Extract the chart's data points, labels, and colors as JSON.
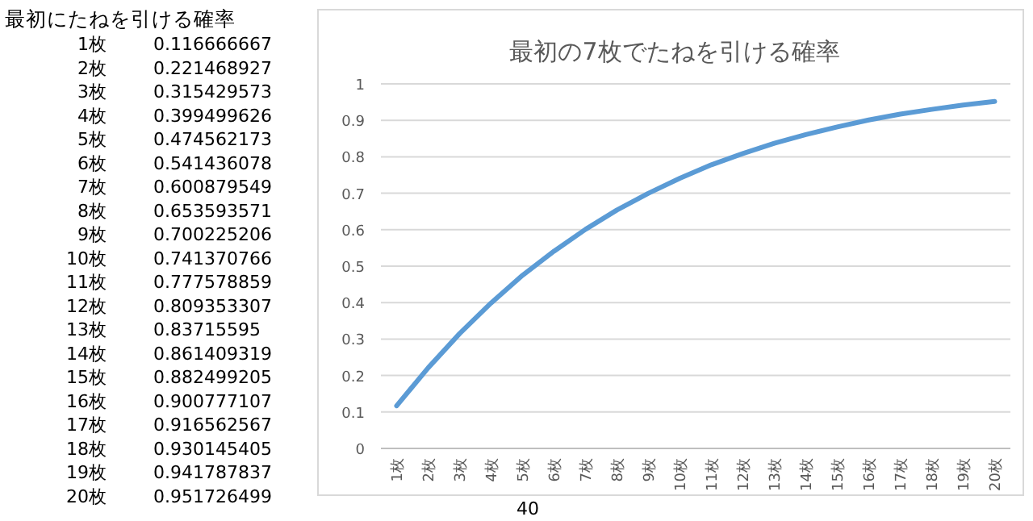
{
  "chart_data": [
    {
      "type": "heatmap",
      "title": "最初にたねを引ける確率",
      "categories": [
        null
      ],
      "y_categories": [
        "1枚",
        "2枚",
        "3枚",
        "4枚",
        "5枚",
        "6枚",
        "7枚",
        "8枚",
        "9枚",
        "10枚",
        "11枚",
        "12枚",
        "13枚",
        "14枚",
        "15枚",
        "16枚",
        "17枚",
        "18枚",
        "19枚",
        "20枚"
      ],
      "cells": [
        [
          0.116666667
        ],
        [
          0.221468927
        ],
        [
          0.315429573
        ],
        [
          0.399499626
        ],
        [
          0.474562173
        ],
        [
          0.541436078
        ],
        [
          0.600879549
        ],
        [
          0.653593571
        ],
        [
          0.700225206
        ],
        [
          0.741370766
        ],
        [
          0.777578859
        ],
        [
          0.809353307
        ],
        [
          0.83715595
        ],
        [
          0.861409319
        ],
        [
          0.882499205
        ],
        [
          0.900777107
        ],
        [
          0.916562567
        ],
        [
          0.930145405
        ],
        [
          0.941787837
        ],
        [
          0.951726499
        ]
      ],
      "cell_labels": [
        [
          "0.116666667"
        ],
        [
          "0.221468927"
        ],
        [
          "0.315429573"
        ],
        [
          "0.399499626"
        ],
        [
          "0.474562173"
        ],
        [
          "0.541436078"
        ],
        [
          "0.600879549"
        ],
        [
          "0.653593571"
        ],
        [
          "0.700225206"
        ],
        [
          "0.741370766"
        ],
        [
          "0.777578859"
        ],
        [
          "0.809353307"
        ],
        [
          "0.83715595"
        ],
        [
          "0.861409319"
        ],
        [
          "0.882499205"
        ],
        [
          "0.900777107"
        ],
        [
          "0.916562567"
        ],
        [
          "0.930145405"
        ],
        [
          "0.941787837"
        ],
        [
          "0.951726499"
        ]
      ],
      "annotations": [
        "40"
      ]
    },
    {
      "type": "line",
      "title": "最初の7枚でたねを引ける確率",
      "categories": [
        "1枚",
        "2枚",
        "3枚",
        "4枚",
        "5枚",
        "6枚",
        "7枚",
        "8枚",
        "9枚",
        "10枚",
        "11枚",
        "12枚",
        "13枚",
        "14枚",
        "15枚",
        "16枚",
        "17枚",
        "18枚",
        "19枚",
        "20枚"
      ],
      "values": [
        0.117,
        0.221,
        0.315,
        0.399,
        0.475,
        0.541,
        0.601,
        0.654,
        0.7,
        0.741,
        0.778,
        0.809,
        0.837,
        0.861,
        0.882,
        0.901,
        0.917,
        0.93,
        0.942,
        0.952
      ],
      "color": "#5b9bd5",
      "ylim": [
        0,
        1
      ],
      "yticks": [
        0,
        0.1,
        0.2,
        0.3,
        0.4,
        0.5,
        0.6,
        0.7,
        0.8,
        0.9,
        1
      ],
      "grid": "y"
    }
  ]
}
